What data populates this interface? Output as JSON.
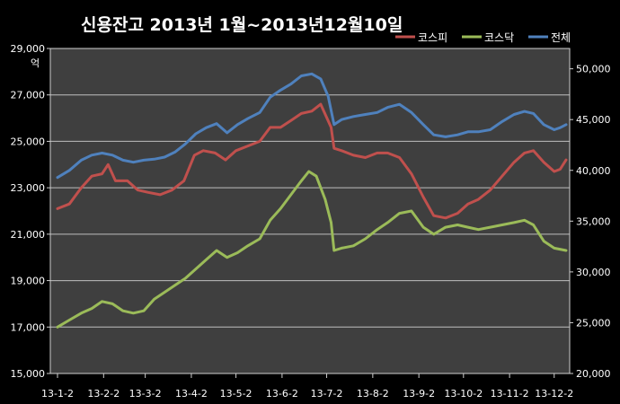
{
  "chart_data": {
    "type": "line",
    "title": "신용잔고  2013년 1월~2013년12월10일",
    "left_axis": {
      "unit": "억",
      "ylim": [
        15000,
        29000
      ],
      "ticks": [
        "15,000",
        "17,000",
        "19,000",
        "21,000",
        "23,000",
        "25,000",
        "27,000",
        "29,000"
      ],
      "tick_values": [
        15000,
        17000,
        19000,
        21000,
        23000,
        25000,
        27000,
        29000
      ]
    },
    "right_axis": {
      "ylim": [
        20000,
        52000
      ],
      "ticks": [
        "20,000",
        "25,000",
        "30,000",
        "35,000",
        "40,000",
        "45,000",
        "50,000"
      ],
      "tick_values": [
        20000,
        25000,
        30000,
        35000,
        40000,
        45000,
        50000
      ]
    },
    "x_ticks": [
      "13-1-2",
      "13-2-2",
      "13-3-2",
      "13-4-2",
      "13-5-2",
      "13-6-2",
      "13-7-2",
      "13-8-2",
      "13-9-2",
      "13-10-2",
      "13-11-2",
      "13-12-2"
    ],
    "x_range": [
      "2013-01-02",
      "2013-12-10"
    ],
    "grid": true,
    "legend_position": "top-right",
    "series": [
      {
        "name": "코스피",
        "axis": "left",
        "color": "#c0504d",
        "points": [
          [
            "2013-01-02",
            22100
          ],
          [
            "2013-01-10",
            22300
          ],
          [
            "2013-01-18",
            23000
          ],
          [
            "2013-01-25",
            23500
          ],
          [
            "2013-02-01",
            23600
          ],
          [
            "2013-02-05",
            24000
          ],
          [
            "2013-02-10",
            23300
          ],
          [
            "2013-02-18",
            23300
          ],
          [
            "2013-02-25",
            22900
          ],
          [
            "2013-03-04",
            22800
          ],
          [
            "2013-03-12",
            22700
          ],
          [
            "2013-03-20",
            22900
          ],
          [
            "2013-03-28",
            23300
          ],
          [
            "2013-04-04",
            24400
          ],
          [
            "2013-04-10",
            24600
          ],
          [
            "2013-04-18",
            24500
          ],
          [
            "2013-04-25",
            24200
          ],
          [
            "2013-05-02",
            24600
          ],
          [
            "2013-05-10",
            24800
          ],
          [
            "2013-05-18",
            25000
          ],
          [
            "2013-05-25",
            25600
          ],
          [
            "2013-06-01",
            25600
          ],
          [
            "2013-06-08",
            25900
          ],
          [
            "2013-06-15",
            26200
          ],
          [
            "2013-06-22",
            26300
          ],
          [
            "2013-06-28",
            26600
          ],
          [
            "2013-07-05",
            25600
          ],
          [
            "2013-07-07",
            24700
          ],
          [
            "2013-07-12",
            24600
          ],
          [
            "2013-07-20",
            24400
          ],
          [
            "2013-07-28",
            24300
          ],
          [
            "2013-08-05",
            24500
          ],
          [
            "2013-08-12",
            24500
          ],
          [
            "2013-08-20",
            24300
          ],
          [
            "2013-08-28",
            23600
          ],
          [
            "2013-09-05",
            22600
          ],
          [
            "2013-09-12",
            21800
          ],
          [
            "2013-09-20",
            21700
          ],
          [
            "2013-09-28",
            21900
          ],
          [
            "2013-10-05",
            22300
          ],
          [
            "2013-10-12",
            22500
          ],
          [
            "2013-10-20",
            22900
          ],
          [
            "2013-10-28",
            23500
          ],
          [
            "2013-11-05",
            24100
          ],
          [
            "2013-11-12",
            24500
          ],
          [
            "2013-11-18",
            24600
          ],
          [
            "2013-11-25",
            24100
          ],
          [
            "2013-12-02",
            23700
          ],
          [
            "2013-12-06",
            23800
          ],
          [
            "2013-12-10",
            24200
          ]
        ]
      },
      {
        "name": "코스닥",
        "axis": "left",
        "color": "#9bbb59",
        "points": [
          [
            "2013-01-02",
            17000
          ],
          [
            "2013-01-10",
            17300
          ],
          [
            "2013-01-18",
            17600
          ],
          [
            "2013-01-25",
            17800
          ],
          [
            "2013-02-01",
            18100
          ],
          [
            "2013-02-08",
            18000
          ],
          [
            "2013-02-15",
            17700
          ],
          [
            "2013-02-22",
            17600
          ],
          [
            "2013-03-01",
            17700
          ],
          [
            "2013-03-08",
            18200
          ],
          [
            "2013-03-15",
            18500
          ],
          [
            "2013-03-22",
            18800
          ],
          [
            "2013-03-29",
            19100
          ],
          [
            "2013-04-05",
            19500
          ],
          [
            "2013-04-12",
            19900
          ],
          [
            "2013-04-19",
            20300
          ],
          [
            "2013-04-26",
            20000
          ],
          [
            "2013-05-03",
            20200
          ],
          [
            "2013-05-10",
            20500
          ],
          [
            "2013-05-18",
            20800
          ],
          [
            "2013-05-25",
            21600
          ],
          [
            "2013-06-01",
            22100
          ],
          [
            "2013-06-08",
            22700
          ],
          [
            "2013-06-15",
            23300
          ],
          [
            "2013-06-20",
            23700
          ],
          [
            "2013-06-25",
            23500
          ],
          [
            "2013-07-01",
            22500
          ],
          [
            "2013-07-05",
            21500
          ],
          [
            "2013-07-07",
            20300
          ],
          [
            "2013-07-12",
            20400
          ],
          [
            "2013-07-20",
            20500
          ],
          [
            "2013-07-28",
            20800
          ],
          [
            "2013-08-05",
            21200
          ],
          [
            "2013-08-12",
            21500
          ],
          [
            "2013-08-20",
            21900
          ],
          [
            "2013-08-28",
            22000
          ],
          [
            "2013-09-05",
            21300
          ],
          [
            "2013-09-12",
            21000
          ],
          [
            "2013-09-20",
            21300
          ],
          [
            "2013-09-28",
            21400
          ],
          [
            "2013-10-05",
            21300
          ],
          [
            "2013-10-12",
            21200
          ],
          [
            "2013-10-20",
            21300
          ],
          [
            "2013-10-28",
            21400
          ],
          [
            "2013-11-05",
            21500
          ],
          [
            "2013-11-12",
            21600
          ],
          [
            "2013-11-18",
            21400
          ],
          [
            "2013-11-25",
            20700
          ],
          [
            "2013-12-02",
            20400
          ],
          [
            "2013-12-10",
            20300
          ]
        ]
      },
      {
        "name": "전체",
        "axis": "right",
        "color": "#4f81bd",
        "points": [
          [
            "2013-01-02",
            39300
          ],
          [
            "2013-01-10",
            40000
          ],
          [
            "2013-01-18",
            41000
          ],
          [
            "2013-01-25",
            41500
          ],
          [
            "2013-02-01",
            41700
          ],
          [
            "2013-02-08",
            41500
          ],
          [
            "2013-02-15",
            41000
          ],
          [
            "2013-02-22",
            40800
          ],
          [
            "2013-03-01",
            41000
          ],
          [
            "2013-03-08",
            41100
          ],
          [
            "2013-03-15",
            41300
          ],
          [
            "2013-03-22",
            41800
          ],
          [
            "2013-03-29",
            42600
          ],
          [
            "2013-04-05",
            43600
          ],
          [
            "2013-04-12",
            44200
          ],
          [
            "2013-04-19",
            44600
          ],
          [
            "2013-04-26",
            43700
          ],
          [
            "2013-05-03",
            44500
          ],
          [
            "2013-05-10",
            45100
          ],
          [
            "2013-05-18",
            45700
          ],
          [
            "2013-05-25",
            47200
          ],
          [
            "2013-06-01",
            47900
          ],
          [
            "2013-06-08",
            48500
          ],
          [
            "2013-06-15",
            49300
          ],
          [
            "2013-06-22",
            49500
          ],
          [
            "2013-06-28",
            49000
          ],
          [
            "2013-07-03",
            47300
          ],
          [
            "2013-07-07",
            44500
          ],
          [
            "2013-07-12",
            45000
          ],
          [
            "2013-07-20",
            45300
          ],
          [
            "2013-07-28",
            45500
          ],
          [
            "2013-08-05",
            45700
          ],
          [
            "2013-08-12",
            46200
          ],
          [
            "2013-08-20",
            46500
          ],
          [
            "2013-08-28",
            45700
          ],
          [
            "2013-09-05",
            44500
          ],
          [
            "2013-09-12",
            43500
          ],
          [
            "2013-09-20",
            43300
          ],
          [
            "2013-09-28",
            43500
          ],
          [
            "2013-10-05",
            43800
          ],
          [
            "2013-10-12",
            43800
          ],
          [
            "2013-10-20",
            44000
          ],
          [
            "2013-10-28",
            44800
          ],
          [
            "2013-11-05",
            45500
          ],
          [
            "2013-11-12",
            45800
          ],
          [
            "2013-11-18",
            45600
          ],
          [
            "2013-11-25",
            44500
          ],
          [
            "2013-12-02",
            44000
          ],
          [
            "2013-12-06",
            44200
          ],
          [
            "2013-12-10",
            44500
          ]
        ]
      }
    ]
  }
}
